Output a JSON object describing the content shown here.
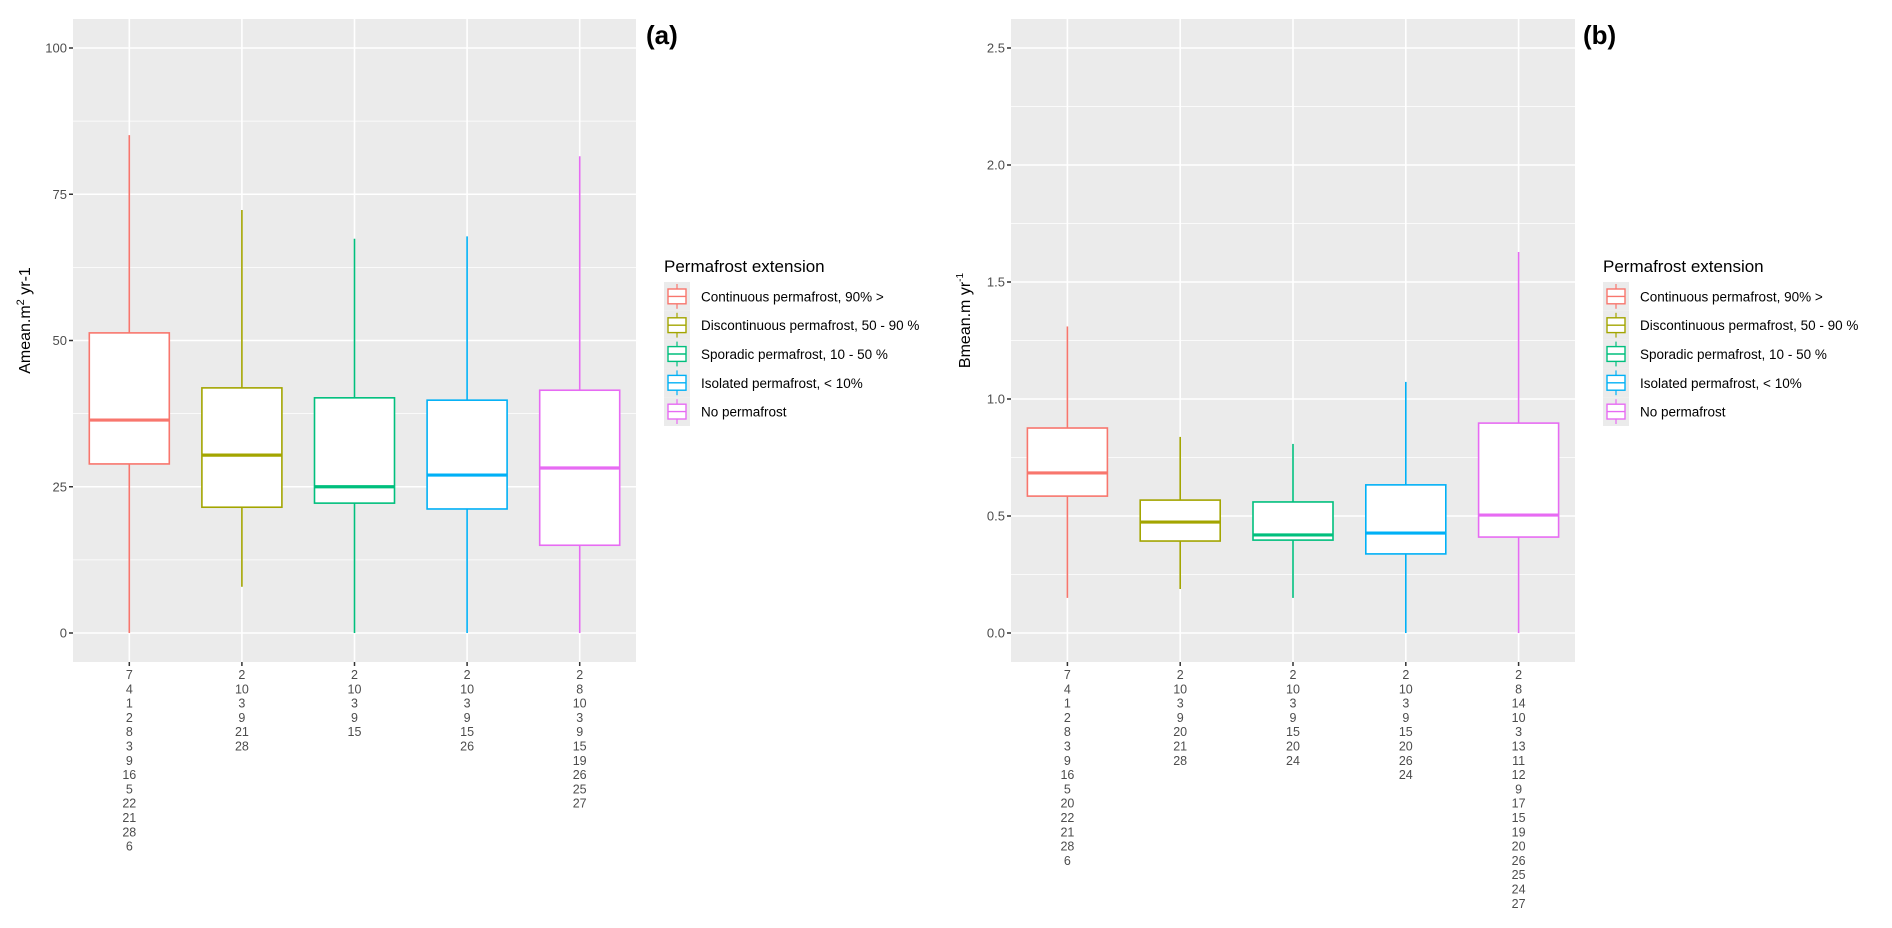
{
  "chart_data": [
    {
      "type": "boxplot",
      "panel_tag": "(a)",
      "title": "",
      "xlabel": "",
      "ylabel": "Amean.m² yr-1",
      "ylabel_parts": {
        "base": "Amean.m",
        "sup": "2",
        "rest": " yr-1",
        "sup2": ""
      },
      "ylim": [
        -5,
        105
      ],
      "yticks": [
        0,
        25,
        50,
        75,
        100
      ],
      "ytick_labels": [
        "0",
        "25",
        "50",
        "75",
        "100"
      ],
      "grid": true,
      "legend_position": "right",
      "legend_title": "Permafrost extension",
      "categories": [
        [
          "7",
          "4",
          "1",
          "2",
          "8",
          "3",
          "9",
          "16",
          "5",
          "22",
          "21",
          "28",
          "6"
        ],
        [
          "2",
          "10",
          "3",
          "9",
          "21",
          "28"
        ],
        [
          "2",
          "10",
          "3",
          "9",
          "15"
        ],
        [
          "2",
          "10",
          "3",
          "9",
          "15",
          "26"
        ],
        [
          "2",
          "8",
          "10",
          "3",
          "9",
          "15",
          "19",
          "26",
          "25",
          "27"
        ]
      ],
      "series": [
        {
          "name": "Continuous permafrost, 90% >",
          "color": "#f8766d",
          "min": 0,
          "q1": 28.9,
          "median": 36.4,
          "q3": 51.3,
          "max": 85.1
        },
        {
          "name": "Discontinuous permafrost, 50 - 90 %",
          "color": "#a3a500",
          "min": 7.9,
          "q1": 21.5,
          "median": 30.4,
          "q3": 41.9,
          "max": 72.3
        },
        {
          "name": "Sporadic permafrost, 10 - 50 %",
          "color": "#00bf7d",
          "min": 0,
          "q1": 22.2,
          "median": 25.0,
          "q3": 40.2,
          "max": 67.4
        },
        {
          "name": "Isolated permafrost, < 10%",
          "color": "#00b0f6",
          "min": 0,
          "q1": 21.2,
          "median": 27.0,
          "q3": 39.8,
          "max": 67.8
        },
        {
          "name": "No permafrost",
          "color": "#e76bf3",
          "min": 0,
          "q1": 15.0,
          "median": 28.2,
          "q3": 41.5,
          "max": 81.5
        }
      ]
    },
    {
      "type": "boxplot",
      "panel_tag": "(b)",
      "title": "",
      "xlabel": "",
      "ylabel": "Bmean.m yr⁻¹",
      "ylabel_parts": {
        "base": "Bmean.m yr",
        "sup": "",
        "rest": "",
        "sup2": "-1"
      },
      "ylim": [
        -0.125,
        2.625
      ],
      "yticks": [
        0.0,
        0.5,
        1.0,
        1.5,
        2.0,
        2.5
      ],
      "ytick_labels": [
        "0.0",
        "0.5",
        "1.0",
        "1.5",
        "2.0",
        "2.5"
      ],
      "grid": true,
      "legend_position": "right",
      "legend_title": "Permafrost extension",
      "categories": [
        [
          "7",
          "4",
          "1",
          "2",
          "8",
          "3",
          "9",
          "16",
          "5",
          "20",
          "22",
          "21",
          "28",
          "6"
        ],
        [
          "2",
          "10",
          "3",
          "9",
          "20",
          "21",
          "28"
        ],
        [
          "2",
          "10",
          "3",
          "9",
          "15",
          "20",
          "24"
        ],
        [
          "2",
          "10",
          "3",
          "9",
          "15",
          "20",
          "26",
          "24"
        ],
        [
          "2",
          "8",
          "14",
          "10",
          "3",
          "13",
          "11",
          "12",
          "9",
          "17",
          "15",
          "19",
          "20",
          "26",
          "25",
          "24",
          "27"
        ]
      ],
      "series": [
        {
          "name": "Continuous permafrost, 90% >",
          "color": "#f8766d",
          "min": 0.15,
          "q1": 0.585,
          "median": 0.684,
          "q3": 0.876,
          "max": 1.31
        },
        {
          "name": "Discontinuous permafrost, 50 - 90 %",
          "color": "#a3a500",
          "min": 0.188,
          "q1": 0.393,
          "median": 0.474,
          "q3": 0.568,
          "max": 0.838
        },
        {
          "name": "Sporadic permafrost, 10 - 50 %",
          "color": "#00bf7d",
          "min": 0.15,
          "q1": 0.397,
          "median": 0.419,
          "q3": 0.56,
          "max": 0.808
        },
        {
          "name": "Isolated permafrost, < 10%",
          "color": "#00b0f6",
          "min": 0,
          "q1": 0.338,
          "median": 0.427,
          "q3": 0.633,
          "max": 1.073
        },
        {
          "name": "No permafrost",
          "color": "#e76bf3",
          "min": 0,
          "q1": 0.41,
          "median": 0.504,
          "q3": 0.897,
          "max": 1.628
        }
      ]
    }
  ]
}
